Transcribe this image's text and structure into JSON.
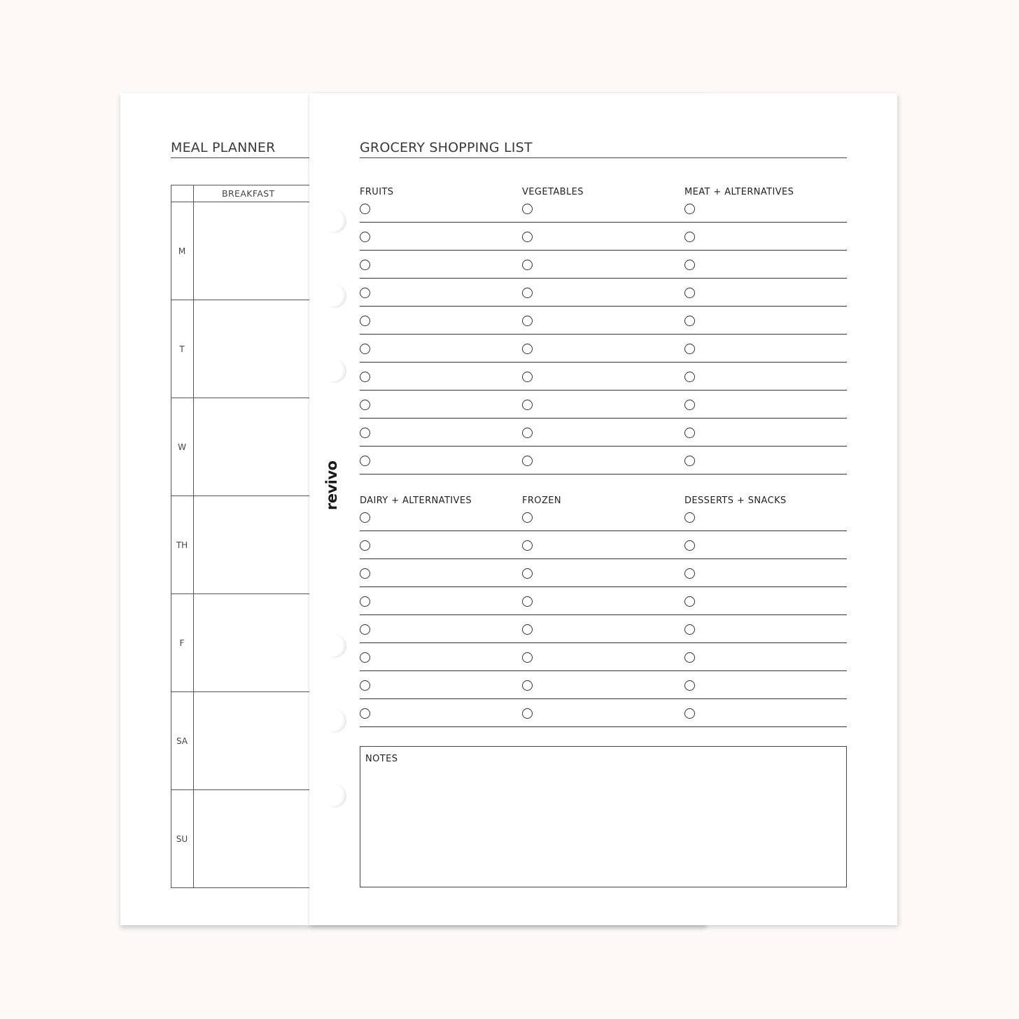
{
  "meal_planner": {
    "title": "MEAL PLANNER",
    "column_header": "BREAKFAST",
    "days": [
      "M",
      "T",
      "W",
      "TH",
      "F",
      "SA",
      "SU"
    ]
  },
  "grocery": {
    "title": "GROCERY SHOPPING LIST",
    "brand": "revivo",
    "sections_top": {
      "headers": [
        "FRUITS",
        "VEGETABLES",
        "MEAT + ALTERNATIVES"
      ],
      "rows": 10
    },
    "sections_bottom": {
      "headers": [
        "DAIRY + ALTERNATIVES",
        "FROZEN",
        "DESSERTS + SNACKS"
      ],
      "rows": 8
    },
    "notes_label": "NOTES"
  }
}
